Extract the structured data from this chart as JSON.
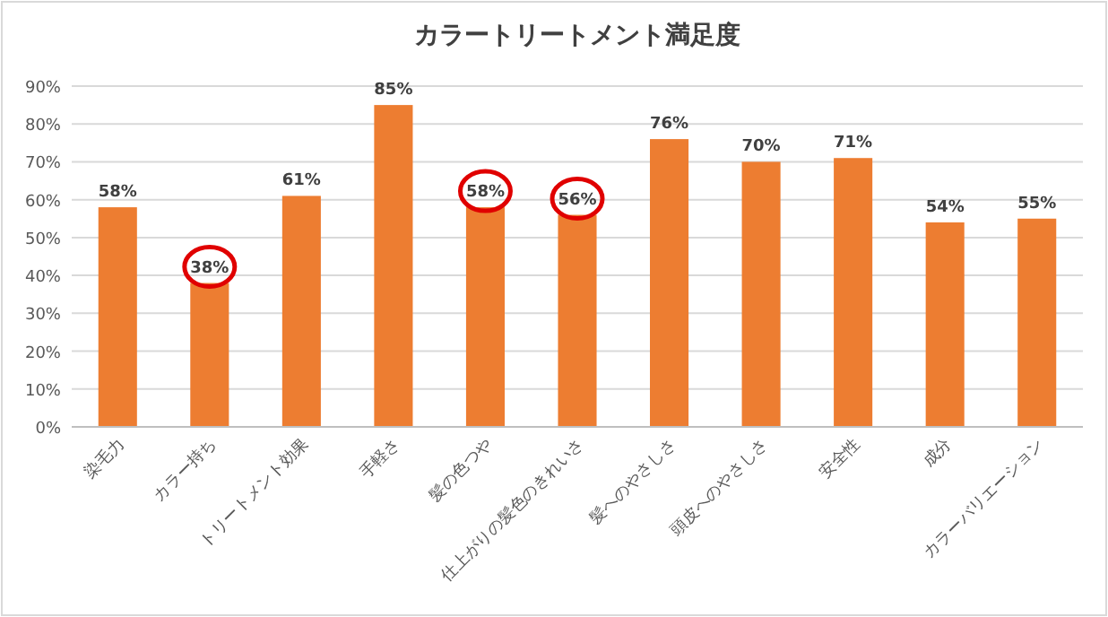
{
  "chart_data": {
    "type": "bar",
    "title": "カラートリートメント満足度",
    "categories": [
      "染毛力",
      "カラー持ち",
      "トリートメント効果",
      "手軽さ",
      "髪の色つや",
      "仕上がりの髪色のきれいさ",
      "髪へのやさしさ",
      "頭皮へのやさしさ",
      "安全性",
      "成分",
      "カラーバリエーション"
    ],
    "values": [
      58,
      38,
      61,
      85,
      58,
      56,
      76,
      70,
      71,
      54,
      55
    ],
    "value_labels": [
      "58%",
      "38%",
      "61%",
      "85%",
      "58%",
      "56%",
      "76%",
      "70%",
      "71%",
      "54%",
      "55%"
    ],
    "color": "#ed7d31",
    "ylim": [
      0,
      90
    ],
    "yticks": [
      {
        "value": 0,
        "label": "0%"
      },
      {
        "value": 10,
        "label": "10%"
      },
      {
        "value": 20,
        "label": "20%"
      },
      {
        "value": 30,
        "label": "30%"
      },
      {
        "value": 40,
        "label": "40%"
      },
      {
        "value": 50,
        "label": "50%"
      },
      {
        "value": 60,
        "label": "60%"
      },
      {
        "value": 70,
        "label": "70%"
      },
      {
        "value": 80,
        "label": "80%"
      },
      {
        "value": 90,
        "label": "90%"
      }
    ],
    "grid": "y"
  }
}
